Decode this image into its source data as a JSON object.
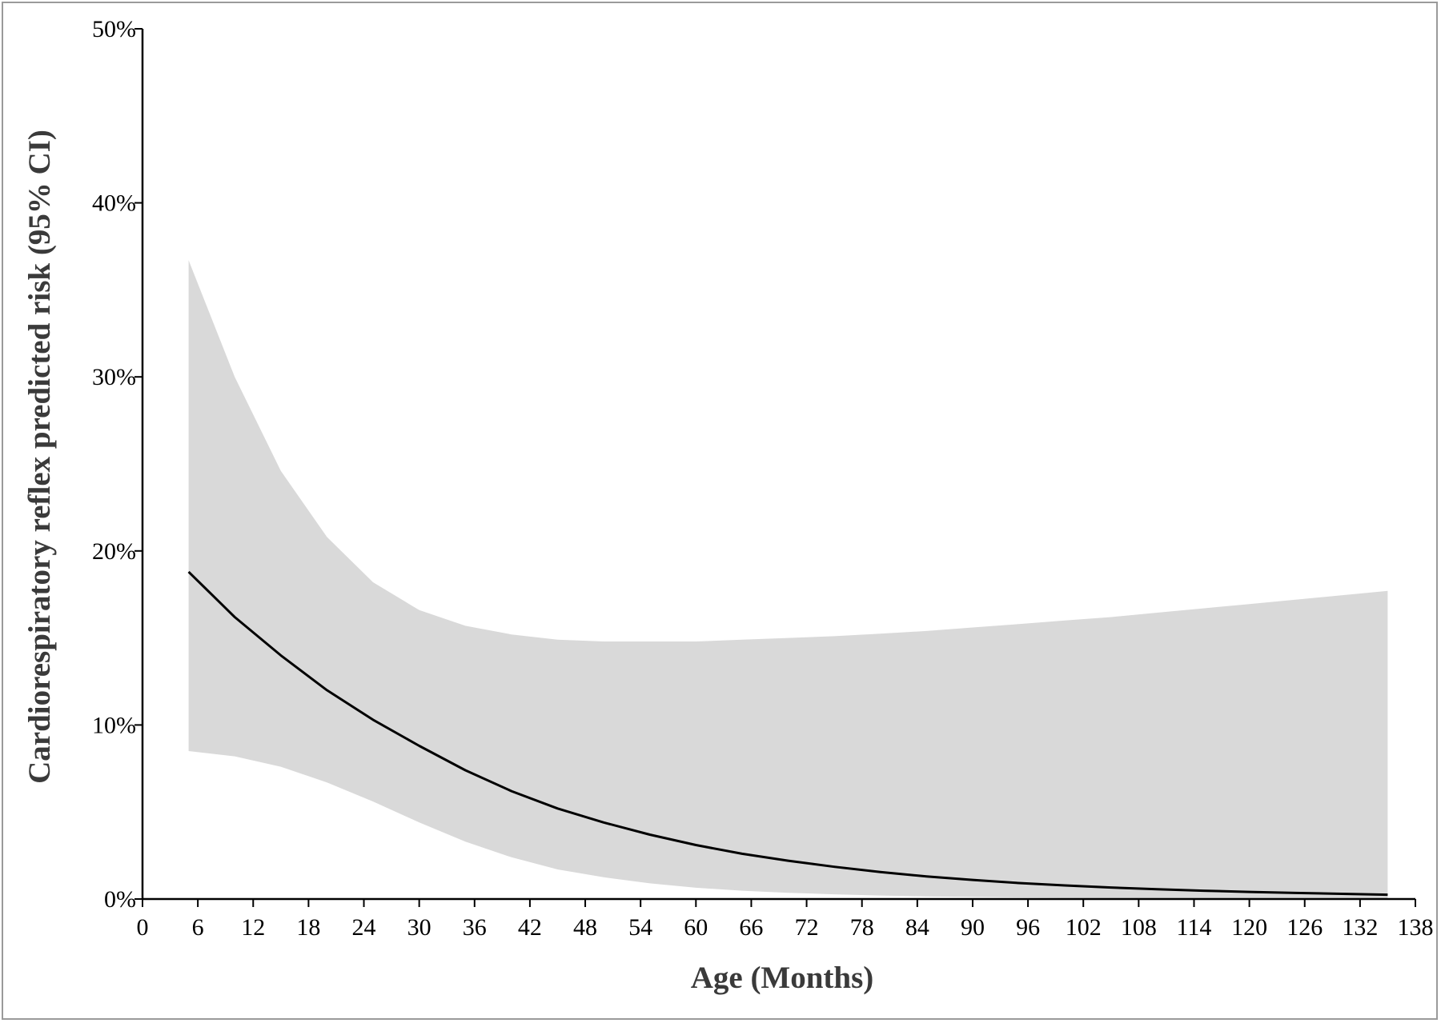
{
  "chart_data": {
    "type": "line",
    "title": "",
    "xlabel": "Age (Months)",
    "ylabel": "Cardiorespiratory reflex predicted risk (95% CI)",
    "xlim": [
      0,
      138
    ],
    "ylim": [
      0,
      50
    ],
    "x_ticks": [
      0,
      6,
      12,
      18,
      24,
      30,
      36,
      42,
      48,
      54,
      60,
      66,
      72,
      78,
      84,
      90,
      96,
      102,
      108,
      114,
      120,
      126,
      132,
      138
    ],
    "x_tick_labels": [
      "0",
      "6",
      "12",
      "18",
      "24",
      "30",
      "36",
      "42",
      "48",
      "54",
      "60",
      "66",
      "72",
      "78",
      "84",
      "90",
      "96",
      "102",
      "108",
      "114",
      "120",
      "126",
      "132",
      "138"
    ],
    "y_ticks": [
      0,
      10,
      20,
      30,
      40,
      50
    ],
    "y_tick_labels": [
      "0%",
      "10%",
      "20%",
      "30%",
      "40%",
      "50%"
    ],
    "grid": false,
    "legend": "none",
    "colors": {
      "line": "#000000",
      "band": "#d9d9d9",
      "axis": "#000000"
    },
    "series": [
      {
        "role": "estimate",
        "x": [
          5,
          10,
          15,
          20,
          25,
          30,
          35,
          40,
          45,
          50,
          55,
          60,
          65,
          70,
          75,
          80,
          85,
          90,
          95,
          100,
          105,
          110,
          115,
          120,
          125,
          130,
          135
        ],
        "values": [
          18.8,
          16.2,
          14.0,
          12.0,
          10.3,
          8.8,
          7.4,
          6.2,
          5.2,
          4.4,
          3.7,
          3.1,
          2.6,
          2.2,
          1.85,
          1.55,
          1.3,
          1.1,
          0.92,
          0.78,
          0.66,
          0.56,
          0.48,
          0.41,
          0.35,
          0.3,
          0.25
        ]
      }
    ],
    "confidence_band": {
      "x": [
        5,
        10,
        15,
        20,
        25,
        30,
        35,
        40,
        45,
        50,
        55,
        60,
        65,
        70,
        75,
        80,
        85,
        90,
        95,
        100,
        105,
        110,
        115,
        120,
        125,
        130,
        135
      ],
      "upper": [
        36.7,
        30.0,
        24.6,
        20.8,
        18.2,
        16.6,
        15.7,
        15.2,
        14.9,
        14.8,
        14.8,
        14.8,
        14.9,
        15.0,
        15.1,
        15.25,
        15.4,
        15.6,
        15.8,
        16.0,
        16.2,
        16.45,
        16.7,
        16.95,
        17.2,
        17.45,
        17.7
      ],
      "lower": [
        8.5,
        8.2,
        7.6,
        6.7,
        5.6,
        4.4,
        3.3,
        2.4,
        1.7,
        1.25,
        0.9,
        0.65,
        0.48,
        0.36,
        0.27,
        0.2,
        0.15,
        0.12,
        0.09,
        0.07,
        0.05,
        0.04,
        0.03,
        0.03,
        0.02,
        0.02,
        0.02
      ]
    }
  }
}
